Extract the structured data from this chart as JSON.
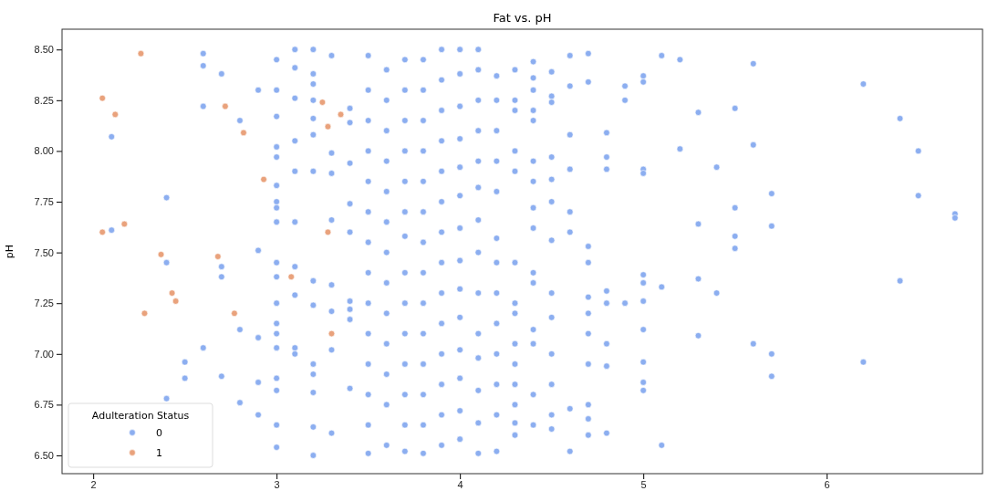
{
  "chart_data": {
    "type": "scatter",
    "title": "Fat vs. pH",
    "ylabel": "pH",
    "legend_title": "Adulteration Status",
    "legend": "bottom left",
    "marker": "circle",
    "xlim": [
      1.83,
      6.85
    ],
    "xticks": [
      2,
      3,
      4,
      5,
      6
    ],
    "ylim": [
      6.41,
      8.6
    ],
    "yticks": [
      {
        "value": 6.5,
        "label": "6.50"
      },
      {
        "value": 6.75,
        "label": "6.75"
      },
      {
        "value": 7,
        "label": "7.00"
      },
      {
        "value": 7.25,
        "label": "7.25"
      },
      {
        "value": 7.5,
        "label": "7.50"
      },
      {
        "value": 7.75,
        "label": "7.75"
      },
      {
        "value": 8,
        "label": "8.00"
      },
      {
        "value": 8.25,
        "label": "8.25"
      },
      {
        "value": 8.5,
        "label": "8.50"
      }
    ],
    "series": [
      {
        "name": "0",
        "color": "#8caef0",
        "x": [
          2.1,
          2.1,
          2.4,
          2.4,
          2.4,
          2.5,
          2.5,
          2.6,
          2.6,
          2.6,
          2.6,
          2.7,
          2.7,
          2.7,
          2.7,
          2.8,
          2.8,
          2.8,
          2.9,
          2.9,
          2.9,
          2.9,
          2.9,
          3,
          3,
          3,
          3,
          3,
          3,
          3,
          3,
          3,
          3,
          3,
          3,
          3,
          3,
          3,
          3,
          3,
          3,
          3,
          3.1,
          3.1,
          3.1,
          3.1,
          3.1,
          3.1,
          3.1,
          3.1,
          3.1,
          3.1,
          3.2,
          3.2,
          3.2,
          3.2,
          3.2,
          3.2,
          3.2,
          3.2,
          3.2,
          3.2,
          3.2,
          3.2,
          3.2,
          3.2,
          3.3,
          3.3,
          3.3,
          3.3,
          3.3,
          3.3,
          3.3,
          3.3,
          3.4,
          3.4,
          3.4,
          3.4,
          3.4,
          3.4,
          3.4,
          3.4,
          3.4,
          3.5,
          3.5,
          3.5,
          3.5,
          3.5,
          3.5,
          3.5,
          3.5,
          3.5,
          3.5,
          3.5,
          3.5,
          3.5,
          3.5,
          3.6,
          3.6,
          3.6,
          3.6,
          3.6,
          3.6,
          3.6,
          3.6,
          3.6,
          3.6,
          3.6,
          3.6,
          3.6,
          3.7,
          3.7,
          3.7,
          3.7,
          3.7,
          3.7,
          3.7,
          3.7,
          3.7,
          3.7,
          3.7,
          3.7,
          3.7,
          3.7,
          3.8,
          3.8,
          3.8,
          3.8,
          3.8,
          3.8,
          3.8,
          3.8,
          3.8,
          3.8,
          3.8,
          3.8,
          3.8,
          3.8,
          3.9,
          3.9,
          3.9,
          3.9,
          3.9,
          3.9,
          3.9,
          3.9,
          3.9,
          3.9,
          3.9,
          3.9,
          3.9,
          3.9,
          4,
          4,
          4,
          4,
          4,
          4,
          4,
          4,
          4,
          4,
          4,
          4,
          4,
          4,
          4.1,
          4.1,
          4.1,
          4.1,
          4.1,
          4.1,
          4.1,
          4.1,
          4.1,
          4.1,
          4.1,
          4.1,
          4.1,
          4.1,
          4.2,
          4.2,
          4.2,
          4.2,
          4.2,
          4.2,
          4.2,
          4.2,
          4.2,
          4.2,
          4.2,
          4.2,
          4.2,
          4.3,
          4.3,
          4.3,
          4.3,
          4.3,
          4.3,
          4.3,
          4.3,
          4.3,
          4.3,
          4.3,
          4.3,
          4.3,
          4.3,
          4.4,
          4.4,
          4.4,
          4.4,
          4.4,
          4.4,
          4.4,
          4.4,
          4.4,
          4.4,
          4.4,
          4.4,
          4.4,
          4.4,
          4.4,
          4.5,
          4.5,
          4.5,
          4.5,
          4.5,
          4.5,
          4.5,
          4.5,
          4.5,
          4.5,
          4.5,
          4.5,
          4.5,
          4.6,
          4.6,
          4.6,
          4.6,
          4.6,
          4.6,
          4.6,
          4.6,
          4.7,
          4.7,
          4.7,
          4.7,
          4.7,
          4.7,
          4.7,
          4.7,
          4.7,
          4.7,
          4.7,
          4.8,
          4.8,
          4.8,
          4.8,
          4.8,
          4.8,
          4.8,
          4.8,
          4.9,
          4.9,
          4.9,
          5,
          5,
          5,
          5,
          5,
          5,
          5,
          5,
          5,
          5,
          5,
          5.1,
          5.1,
          5.1,
          5.2,
          5.2,
          5.3,
          5.3,
          5.3,
          5.3,
          5.4,
          5.4,
          5.5,
          5.5,
          5.5,
          5.5,
          5.6,
          5.6,
          5.6,
          5.7,
          5.7,
          5.7,
          5.7,
          6.2,
          6.2,
          6.4,
          6.4,
          6.5,
          6.5,
          6.7,
          6.7
        ],
        "values": [
          8.07,
          7.61,
          7.77,
          7.45,
          6.78,
          6.96,
          6.88,
          8.48,
          8.42,
          8.22,
          7.03,
          8.38,
          7.43,
          7.38,
          6.89,
          8.15,
          7.12,
          6.76,
          8.3,
          7.51,
          7.08,
          6.86,
          6.7,
          8.45,
          8.3,
          8.17,
          8.02,
          7.97,
          7.83,
          7.75,
          7.72,
          7.65,
          7.45,
          7.38,
          7.25,
          7.15,
          7.1,
          7.03,
          6.88,
          6.82,
          6.65,
          6.54,
          8.5,
          8.41,
          8.26,
          8.05,
          7.9,
          7.65,
          7.43,
          7.29,
          7.03,
          7,
          8.5,
          8.38,
          8.33,
          8.25,
          8.16,
          8.08,
          7.9,
          7.36,
          7.24,
          6.95,
          6.9,
          6.81,
          6.64,
          6.5,
          8.47,
          7.99,
          7.89,
          7.66,
          7.34,
          7.21,
          7.02,
          6.61,
          8.21,
          8.14,
          7.94,
          7.74,
          7.6,
          7.26,
          7.22,
          7.17,
          6.83,
          8.47,
          8.3,
          8.15,
          8,
          7.85,
          7.7,
          7.55,
          7.4,
          7.25,
          7.1,
          6.95,
          6.8,
          6.65,
          6.51,
          8.4,
          8.25,
          8.1,
          7.95,
          7.8,
          7.65,
          7.5,
          7.35,
          7.2,
          7.05,
          6.9,
          6.75,
          6.55,
          8.45,
          8.3,
          8.15,
          8,
          7.85,
          7.7,
          7.58,
          7.4,
          7.25,
          7.1,
          6.95,
          6.8,
          6.65,
          6.52,
          8.45,
          8.3,
          8.15,
          8,
          7.85,
          7.7,
          7.55,
          7.4,
          7.25,
          7.1,
          6.95,
          6.8,
          6.65,
          6.51,
          8.5,
          8.35,
          8.2,
          8.05,
          7.9,
          7.75,
          7.6,
          7.45,
          7.3,
          7.15,
          7,
          6.85,
          6.7,
          6.55,
          8.5,
          8.38,
          8.22,
          8.06,
          7.92,
          7.78,
          7.62,
          7.46,
          7.32,
          7.18,
          7.02,
          6.88,
          6.72,
          6.58,
          8.5,
          8.4,
          8.25,
          8.1,
          7.95,
          7.82,
          7.66,
          7.5,
          7.3,
          7.1,
          6.98,
          6.82,
          6.66,
          6.51,
          8.37,
          8.25,
          8.1,
          7.95,
          7.8,
          7.57,
          7.45,
          7.3,
          7.15,
          7,
          6.85,
          6.7,
          6.52,
          8.4,
          8.25,
          8.2,
          8,
          7.9,
          7.45,
          7.25,
          7.2,
          7.05,
          6.95,
          6.85,
          6.75,
          6.66,
          6.6,
          8.44,
          8.36,
          8.3,
          8.2,
          8.15,
          7.95,
          7.85,
          7.72,
          7.62,
          7.4,
          7.35,
          7.12,
          7.05,
          6.8,
          6.65,
          8.39,
          8.27,
          8.24,
          7.97,
          7.86,
          7.75,
          7.56,
          7.3,
          7.18,
          7,
          6.85,
          6.7,
          6.63,
          8.47,
          8.32,
          8.08,
          7.91,
          7.7,
          7.6,
          6.73,
          6.52,
          8.48,
          8.34,
          7.53,
          7.45,
          7.28,
          7.2,
          7.1,
          6.95,
          6.75,
          6.68,
          6.6,
          8.09,
          7.97,
          7.91,
          7.31,
          7.25,
          7.05,
          6.94,
          6.61,
          8.32,
          8.25,
          7.25,
          8.37,
          8.34,
          7.91,
          7.89,
          7.39,
          7.35,
          7.26,
          7.12,
          6.96,
          6.86,
          6.82,
          8.47,
          7.33,
          6.55,
          8.45,
          8.01,
          8.19,
          7.64,
          7.37,
          7.09,
          7.92,
          7.3,
          8.21,
          7.72,
          7.58,
          7.52,
          8.43,
          8.03,
          7.05,
          7.79,
          7.63,
          7,
          6.89,
          8.33,
          6.96,
          8.16,
          7.36,
          8,
          7.78,
          7.69,
          7.67
        ]
      },
      {
        "name": "1",
        "color": "#e9a27c",
        "x": [
          2.05,
          2.05,
          2.12,
          2.17,
          2.26,
          2.28,
          2.37,
          2.43,
          2.45,
          2.68,
          2.72,
          2.77,
          2.82,
          2.93,
          3.08,
          3.25,
          3.28,
          3.28,
          3.3,
          3.35
        ],
        "values": [
          7.6,
          8.26,
          8.18,
          7.64,
          8.48,
          7.2,
          7.49,
          7.3,
          7.26,
          7.48,
          8.22,
          7.2,
          8.09,
          7.86,
          7.38,
          8.24,
          7.6,
          8.12,
          7.1,
          8.18
        ]
      }
    ]
  }
}
